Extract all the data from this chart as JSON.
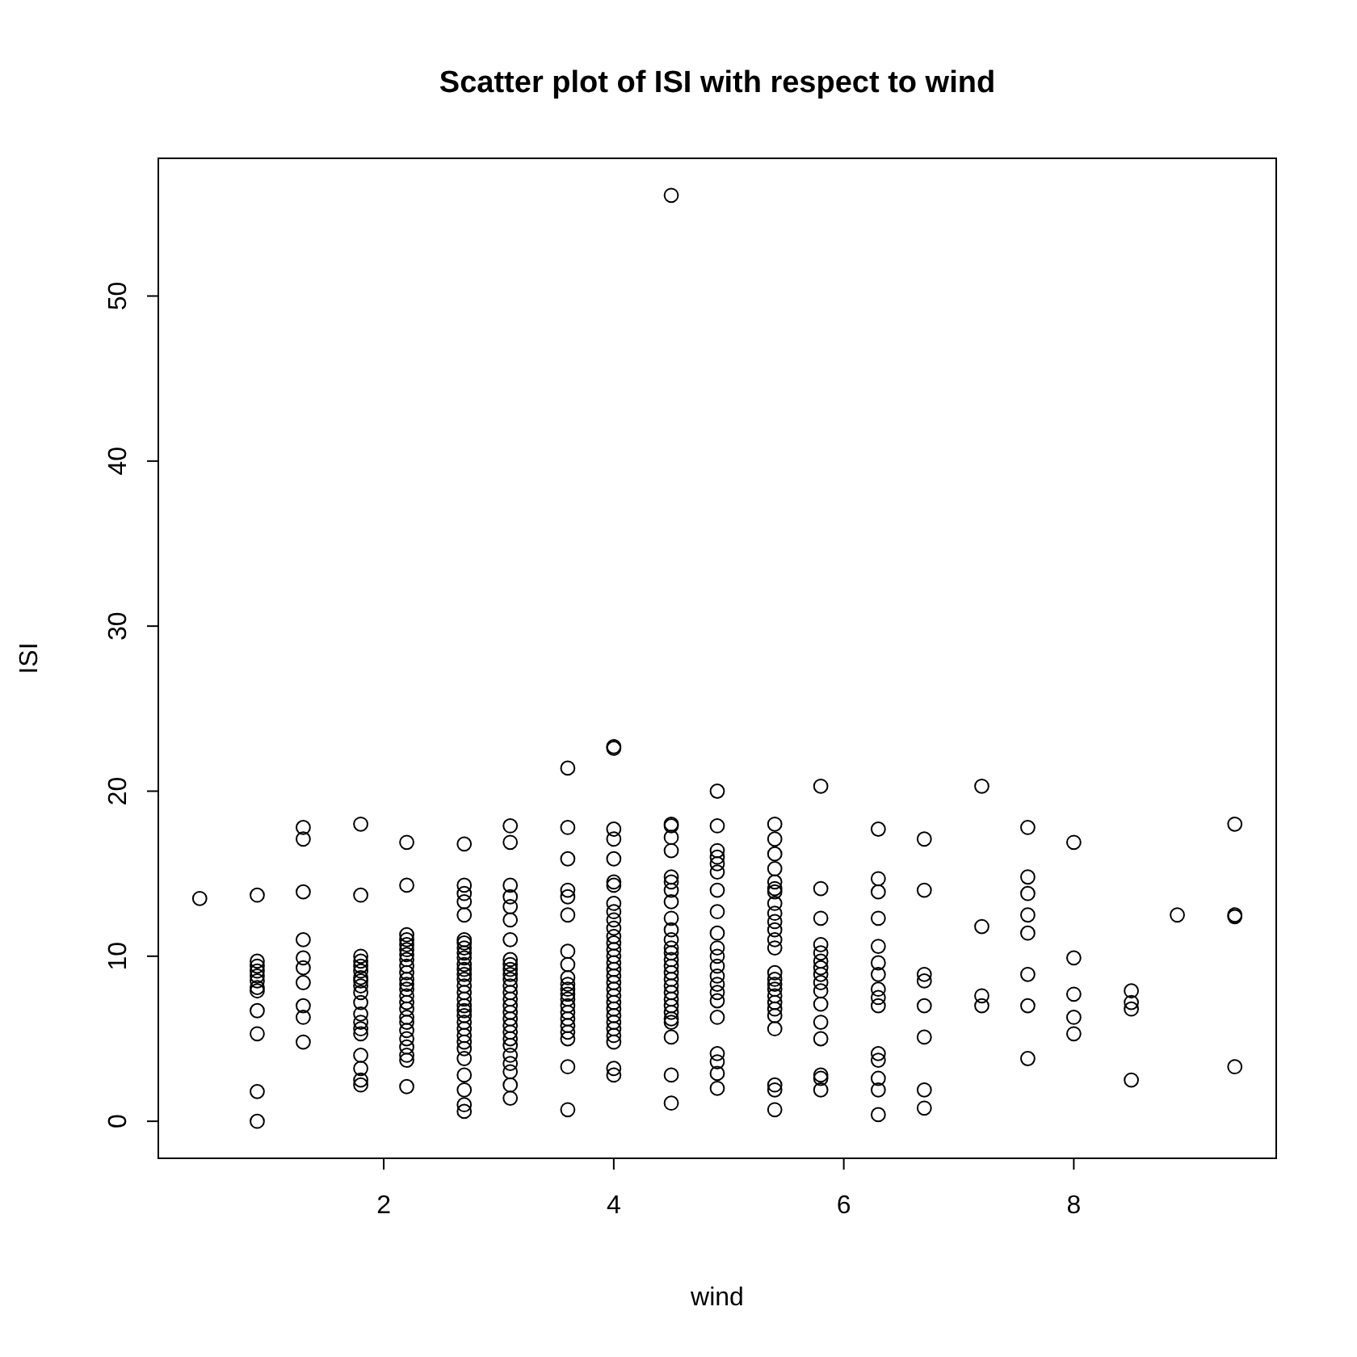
{
  "chart_data": {
    "type": "scatter",
    "title": "Scatter plot of ISI with respect to wind",
    "xlabel": "wind",
    "ylabel": "ISI",
    "xlim": [
      0.04,
      9.76
    ],
    "ylim": [
      -2.244,
      58.344
    ],
    "xticks": [
      2,
      4,
      6,
      8
    ],
    "yticks": [
      0,
      10,
      20,
      30,
      40,
      50
    ],
    "grid": false,
    "marker": "circle",
    "series": [
      {
        "color": "#000000",
        "x": [
          0.4,
          0.9,
          0.9,
          0.9,
          0.9,
          0.9,
          0.9,
          0.9,
          0.9,
          0.9,
          0.9,
          0.9,
          0.9,
          1.3,
          1.3,
          1.3,
          1.3,
          1.3,
          1.3,
          1.3,
          1.3,
          1.3,
          1.3,
          1.8,
          1.8,
          1.8,
          1.8,
          1.8,
          1.8,
          1.8,
          1.8,
          1.8,
          1.8,
          1.8,
          1.8,
          1.8,
          1.8,
          1.8,
          1.8,
          1.8,
          1.8,
          1.8
        ],
        "values": [
          13.5,
          13.7,
          9.7,
          9.4,
          9.1,
          8.8,
          8.5,
          8.1,
          7.9,
          6.7,
          5.3,
          1.8,
          0,
          17.8,
          17.1,
          13.9,
          11.0,
          9.9,
          9.3,
          8.4,
          7.0,
          6.3,
          4.8,
          18.0,
          13.7,
          10.0,
          9.7,
          9.4,
          9.1,
          8.7,
          8.5,
          8.2,
          7.8,
          7.2,
          6.5,
          6.0,
          5.6,
          5.3,
          4.0,
          3.2,
          2.5,
          2.2
        ]
      },
      {
        "color": "#000000",
        "x": [
          2.2,
          2.2,
          2.2,
          2.2,
          2.2,
          2.2,
          2.2,
          2.2,
          2.2,
          2.2,
          2.2,
          2.2,
          2.2,
          2.2,
          2.2,
          2.2,
          2.2,
          2.2,
          2.2,
          2.2,
          2.2,
          2.2,
          2.2,
          2.2
        ],
        "values": [
          16.9,
          14.3,
          11.3,
          11.0,
          10.7,
          10.4,
          10.1,
          9.8,
          9.4,
          9.0,
          8.6,
          8.3,
          8.0,
          7.6,
          7.2,
          6.8,
          6.3,
          6.0,
          5.5,
          5.0,
          4.5,
          4.0,
          3.7,
          2.1
        ]
      },
      {
        "color": "#000000",
        "x": [
          2.7,
          2.7,
          2.7,
          2.7,
          2.7,
          2.7,
          2.7,
          2.7,
          2.7,
          2.7,
          2.7,
          2.7,
          2.7,
          2.7,
          2.7,
          2.7,
          2.7,
          2.7,
          2.7,
          2.7,
          2.7,
          2.7,
          2.7,
          2.7,
          2.7,
          2.7,
          2.7,
          2.7,
          2.7,
          2.7
        ],
        "values": [
          16.8,
          14.3,
          13.8,
          13.3,
          12.5,
          11.0,
          10.8,
          10.5,
          10.2,
          9.9,
          9.5,
          9.2,
          8.9,
          8.6,
          8.2,
          7.8,
          7.4,
          7.0,
          6.7,
          6.4,
          6.0,
          5.6,
          5.2,
          4.8,
          4.4,
          3.8,
          2.8,
          1.9,
          1.0,
          0.6
        ]
      },
      {
        "color": "#000000",
        "x": [
          3.1,
          3.1,
          3.1,
          3.1,
          3.1,
          3.1,
          3.1,
          3.1,
          3.1,
          3.1,
          3.1,
          3.1,
          3.1,
          3.1,
          3.1,
          3.1,
          3.1,
          3.1,
          3.1,
          3.1,
          3.1,
          3.1,
          3.1,
          3.1,
          3.1,
          3.1,
          3.1
        ],
        "values": [
          17.9,
          16.9,
          14.3,
          13.6,
          13.0,
          12.2,
          11.0,
          9.5,
          9.2,
          8.9,
          8.6,
          8.2,
          7.8,
          7.4,
          7.0,
          6.6,
          6.2,
          5.8,
          5.4,
          5.0,
          4.6,
          4.0,
          3.5,
          3.0,
          2.2,
          1.4,
          9.8
        ]
      },
      {
        "color": "#000000",
        "x": [
          3.6,
          3.6,
          3.6,
          3.6,
          3.6,
          3.6,
          3.6,
          3.6,
          3.6,
          3.6,
          3.6,
          3.6,
          3.6,
          3.6,
          3.6,
          3.6,
          3.6,
          3.6,
          3.6,
          3.6,
          3.6
        ],
        "values": [
          21.4,
          17.8,
          15.9,
          14.0,
          13.6,
          12.5,
          10.3,
          9.5,
          8.7,
          8.3,
          8.0,
          7.7,
          7.4,
          7.0,
          6.6,
          6.2,
          5.8,
          5.4,
          5.0,
          3.3,
          0.7
        ]
      },
      {
        "color": "#000000",
        "x": [
          4.0,
          4.0,
          4.0,
          4.0,
          4.0,
          4.0,
          4.0,
          4.0,
          4.0,
          4.0,
          4.0,
          4.0,
          4.0,
          4.0,
          4.0,
          4.0,
          4.0,
          4.0,
          4.0,
          4.0,
          4.0,
          4.0,
          4.0,
          4.0,
          4.0,
          4.0,
          4.0,
          4.0,
          4.0,
          4.0
        ],
        "values": [
          22.7,
          22.6,
          17.7,
          17.1,
          15.9,
          14.5,
          14.3,
          13.2,
          12.7,
          12.2,
          11.7,
          11.2,
          10.8,
          10.4,
          10.0,
          9.6,
          9.2,
          8.8,
          8.4,
          8.0,
          7.6,
          7.2,
          6.8,
          6.4,
          6.0,
          5.6,
          5.2,
          4.8,
          3.2,
          2.8
        ]
      },
      {
        "color": "#000000",
        "x": [
          4.5,
          4.5,
          4.5,
          4.5,
          4.5,
          4.5,
          4.5,
          4.5,
          4.5,
          4.5,
          4.5,
          4.5,
          4.5,
          4.5,
          4.5,
          4.5,
          4.5,
          4.5,
          4.5,
          4.5,
          4.5,
          4.5,
          4.5,
          4.5,
          4.5,
          4.5,
          4.5,
          4.5
        ],
        "values": [
          56.1,
          18.0,
          17.9,
          17.2,
          16.4,
          14.8,
          14.5,
          14.0,
          13.3,
          12.3,
          11.6,
          11.0,
          10.5,
          10.2,
          9.8,
          9.4,
          9.0,
          8.6,
          8.2,
          7.8,
          7.4,
          7.0,
          6.6,
          6.2,
          5.1,
          2.8,
          1.1,
          6.0
        ]
      },
      {
        "color": "#000000",
        "x": [
          4.9,
          4.9,
          4.9,
          4.9,
          4.9,
          4.9,
          4.9,
          4.9,
          4.9,
          4.9,
          4.9,
          4.9,
          4.9,
          4.9,
          4.9,
          4.9,
          4.9,
          4.9,
          4.9,
          4.9,
          4.9
        ],
        "values": [
          20.0,
          17.9,
          16.4,
          16.0,
          15.6,
          15.1,
          14.0,
          12.7,
          11.4,
          10.5,
          10.0,
          9.4,
          8.8,
          8.3,
          7.8,
          7.3,
          6.3,
          4.1,
          3.6,
          2.9,
          2.0
        ]
      },
      {
        "color": "#000000",
        "x": [
          5.4,
          5.4,
          5.4,
          5.4,
          5.4,
          5.4,
          5.4,
          5.4,
          5.4,
          5.4,
          5.4,
          5.4,
          5.4,
          5.4,
          5.4,
          5.4,
          5.4,
          5.4,
          5.4,
          5.4,
          5.4,
          5.4,
          5.4,
          5.4,
          5.4
        ],
        "values": [
          18.0,
          17.1,
          16.2,
          15.3,
          14.5,
          14.1,
          13.9,
          13.2,
          12.6,
          12.1,
          11.6,
          11.0,
          10.5,
          9.0,
          8.6,
          8.3,
          8.0,
          7.6,
          7.2,
          6.8,
          6.4,
          5.6,
          2.2,
          1.9,
          0.7
        ]
      },
      {
        "color": "#000000",
        "x": [
          5.8,
          5.8,
          5.8,
          5.8,
          5.8,
          5.8,
          5.8,
          5.8,
          5.8,
          5.8,
          5.8,
          5.8,
          5.8,
          5.8,
          5.8,
          5.8
        ],
        "values": [
          20.3,
          14.1,
          12.3,
          10.7,
          10.2,
          9.7,
          9.3,
          8.9,
          8.4,
          7.9,
          7.1,
          6.0,
          5.0,
          2.8,
          2.6,
          1.9
        ]
      },
      {
        "color": "#000000",
        "x": [
          6.3,
          6.3,
          6.3,
          6.3,
          6.3,
          6.3,
          6.3,
          6.3,
          6.3,
          6.3,
          6.3,
          6.3,
          6.3,
          6.3,
          6.3
        ],
        "values": [
          17.7,
          14.7,
          13.9,
          12.3,
          10.6,
          9.6,
          8.9,
          8.0,
          7.5,
          7.0,
          4.1,
          3.7,
          2.6,
          1.9,
          0.4
        ]
      },
      {
        "color": "#000000",
        "x": [
          6.7,
          6.7,
          6.7,
          6.7,
          6.7,
          6.7,
          6.7,
          6.7,
          7.2,
          7.2,
          7.2,
          7.2,
          7.6,
          7.6,
          7.6,
          7.6,
          7.6,
          7.6,
          7.6,
          7.6,
          8.0,
          8.0,
          8.0,
          8.0,
          8.0,
          8.5,
          8.5,
          8.5,
          8.5,
          8.9,
          9.4,
          9.4,
          9.4,
          9.4
        ],
        "values": [
          17.1,
          14.0,
          8.9,
          8.5,
          7.0,
          5.1,
          1.9,
          0.8,
          20.3,
          11.8,
          7.6,
          7.0,
          17.8,
          14.8,
          13.8,
          12.5,
          11.4,
          8.9,
          7.0,
          3.8,
          16.9,
          9.9,
          7.7,
          6.3,
          5.3,
          7.9,
          7.2,
          6.8,
          2.5,
          12.5,
          18.0,
          12.5,
          12.4,
          3.3
        ]
      }
    ]
  }
}
